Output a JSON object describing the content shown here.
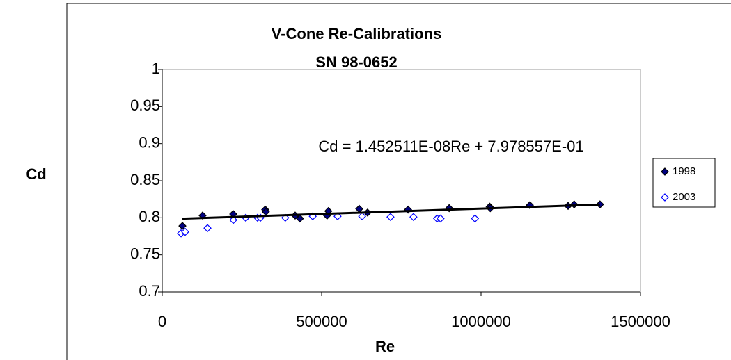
{
  "chart_data": {
    "type": "scatter",
    "title": "V-Cone Re-Calibrations",
    "subtitle": "SN 98-0652",
    "xlabel": "Re",
    "ylabel": "Cd",
    "xlim": [
      0,
      1500000
    ],
    "xticks": [
      0,
      500000,
      1000000,
      1500000
    ],
    "ylim": [
      0.7,
      1
    ],
    "yticks": [
      0.7,
      0.75,
      0.8,
      0.85,
      0.9,
      0.95,
      1
    ],
    "legend": "right",
    "series": [
      {
        "name": "1998",
        "color": "#000080",
        "marker": "filled",
        "x": [
          63300,
          126600,
          222700,
          323000,
          325000,
          417000,
          432000,
          517000,
          521000,
          618000,
          644000,
          771000,
          900000,
          1027000,
          1029000,
          1153000,
          1273000,
          1292000,
          1373000
        ],
        "values": [
          0.789,
          0.803,
          0.805,
          0.811,
          0.808,
          0.803,
          0.799,
          0.803,
          0.809,
          0.812,
          0.807,
          0.811,
          0.813,
          0.815,
          0.813,
          0.817,
          0.816,
          0.818,
          0.818
        ]
      },
      {
        "name": "2003",
        "color": "#0000ff",
        "marker": "hollow",
        "x": [
          59000,
          72000,
          142000,
          223000,
          262000,
          299000,
          308000,
          386000,
          472000,
          550000,
          627000,
          716000,
          788000,
          862000,
          873000,
          981000
        ],
        "values": [
          0.779,
          0.781,
          0.786,
          0.797,
          0.8,
          0.8,
          0.8,
          0.8,
          0.802,
          0.802,
          0.802,
          0.801,
          0.801,
          0.799,
          0.799,
          0.799
        ]
      }
    ],
    "trendline": {
      "label": "Cd = 1.452511E-08Re + 7.978557E-01",
      "slope": 1.452511e-08,
      "intercept": 0.7978557,
      "color": "#000000"
    }
  }
}
